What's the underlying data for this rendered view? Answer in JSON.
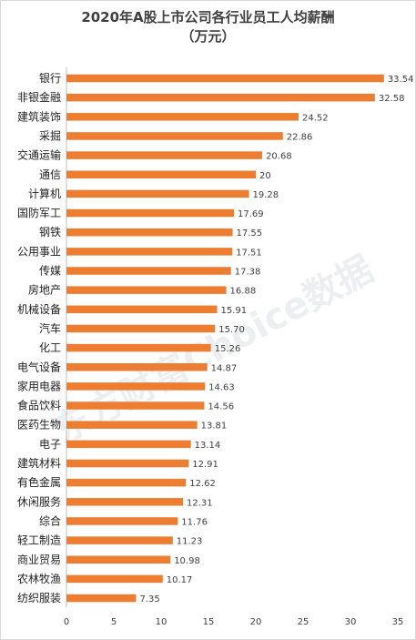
{
  "chart_data": {
    "type": "bar",
    "orientation": "horizontal",
    "title": "2020年A股上市公司各行业员工人均薪酬",
    "subtitle": "（万元）",
    "categories": [
      "银行",
      "非银金融",
      "建筑装饰",
      "采掘",
      "交通运输",
      "通信",
      "计算机",
      "国防军工",
      "钢铁",
      "公用事业",
      "传媒",
      "房地产",
      "机械设备",
      "汽车",
      "化工",
      "电气设备",
      "家用电器",
      "食品饮料",
      "医药生物",
      "电子",
      "建筑材料",
      "有色金属",
      "休闲服务",
      "综合",
      "轻工制造",
      "商业贸易",
      "农林牧渔",
      "纺织服装"
    ],
    "values": [
      33.54,
      32.58,
      24.52,
      22.86,
      20.68,
      20,
      19.28,
      17.69,
      17.55,
      17.51,
      17.38,
      16.88,
      15.91,
      15.7,
      15.26,
      14.87,
      14.63,
      14.56,
      13.81,
      13.14,
      12.91,
      12.62,
      12.31,
      11.76,
      11.23,
      10.98,
      10.17,
      7.35
    ],
    "value_labels": [
      "33.54",
      "32.58",
      "24.52",
      "22.86",
      "20.68",
      "20",
      "19.28",
      "17.69",
      "17.55",
      "17.51",
      "17.38",
      "16.88",
      "15.91",
      "15.70",
      "15.26",
      "14.87",
      "14.63",
      "14.56",
      "13.81",
      "13.14",
      "12.91",
      "12.62",
      "12.31",
      "11.76",
      "11.23",
      "10.98",
      "10.17",
      "7.35"
    ],
    "xlim": [
      0,
      35
    ],
    "xticks": [
      "0",
      "5",
      "10",
      "15",
      "20",
      "25",
      "30",
      "35"
    ],
    "xlabel": "",
    "ylabel": "",
    "grid": false,
    "bar_color": "#ed7d31",
    "watermark": "东方财富Choice数据"
  }
}
